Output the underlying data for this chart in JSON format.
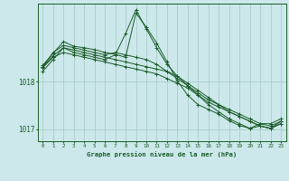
{
  "title": "Graphe pression niveau de la mer (hPa)",
  "bg_color": "#cce8ea",
  "grid_color": "#aacccc",
  "line_color": "#1a5c28",
  "xlim": [
    -0.5,
    23.5
  ],
  "ylim": [
    1016.75,
    1019.65
  ],
  "yticks": [
    1017,
    1018
  ],
  "xticks": [
    0,
    1,
    2,
    3,
    4,
    5,
    6,
    7,
    8,
    9,
    10,
    11,
    12,
    13,
    14,
    15,
    16,
    17,
    18,
    19,
    20,
    21,
    22,
    23
  ],
  "series": [
    [
      1018.35,
      1018.6,
      1018.85,
      1018.75,
      1018.72,
      1018.68,
      1018.62,
      1018.58,
      1018.52,
      1019.45,
      1019.15,
      1018.82,
      1018.42,
      1018.02,
      1017.72,
      1017.52,
      1017.42,
      1017.32,
      1017.18,
      1017.08,
      1017.02,
      1017.12,
      1017.12,
      1017.22
    ],
    [
      1018.32,
      1018.55,
      1018.72,
      1018.67,
      1018.62,
      1018.57,
      1018.52,
      1018.47,
      1018.42,
      1018.37,
      1018.32,
      1018.27,
      1018.22,
      1018.12,
      1017.97,
      1017.82,
      1017.67,
      1017.52,
      1017.42,
      1017.32,
      1017.22,
      1017.12,
      1017.07,
      1017.17
    ],
    [
      1018.3,
      1018.52,
      1018.62,
      1018.57,
      1018.52,
      1018.47,
      1018.42,
      1018.37,
      1018.32,
      1018.27,
      1018.22,
      1018.17,
      1018.07,
      1017.97,
      1017.87,
      1017.72,
      1017.57,
      1017.47,
      1017.37,
      1017.27,
      1017.17,
      1017.07,
      1017.02,
      1017.12
    ],
    [
      1018.32,
      1018.62,
      1018.77,
      1018.72,
      1018.67,
      1018.62,
      1018.57,
      1018.62,
      1018.57,
      1018.52,
      1018.47,
      1018.37,
      1018.22,
      1018.07,
      1017.92,
      1017.77,
      1017.62,
      1017.52,
      1017.37,
      1017.27,
      1017.17,
      1017.07,
      1017.02,
      1017.12
    ],
    [
      1018.22,
      1018.47,
      1018.72,
      1018.62,
      1018.57,
      1018.52,
      1018.47,
      1018.57,
      1019.02,
      1019.52,
      1019.12,
      1018.72,
      1018.37,
      1018.12,
      1017.92,
      1017.72,
      1017.52,
      1017.37,
      1017.22,
      1017.12,
      1017.02,
      1017.07,
      1017.02,
      1017.17
    ]
  ]
}
